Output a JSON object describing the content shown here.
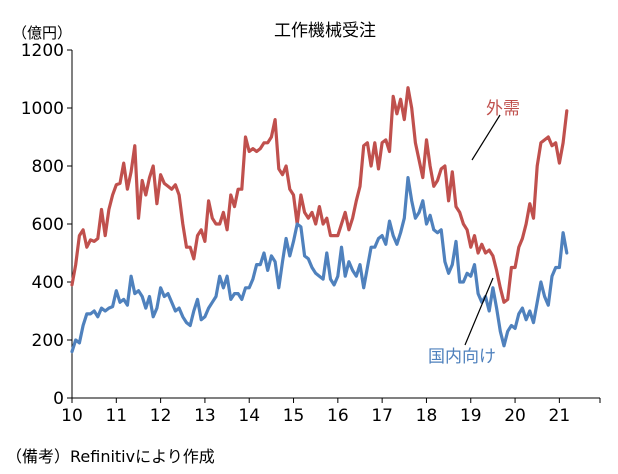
{
  "chart_data": {
    "type": "line",
    "title": "工作機械受注",
    "unit_label": "（億円）",
    "note": "（備考）Refinitivにより作成",
    "ylim": [
      0,
      1200
    ],
    "yticks": [
      0,
      200,
      400,
      600,
      800,
      1000,
      1200
    ],
    "xlim": [
      2010.0,
      2021.917
    ],
    "xticks": [
      "10",
      "11",
      "12",
      "13",
      "14",
      "15",
      "16",
      "17",
      "18",
      "19",
      "20",
      "21"
    ],
    "grid": false,
    "x_start": 2010.0,
    "x_step": 0.0833333,
    "series": [
      {
        "name": "外需",
        "color": "#c0504d",
        "values": [
          390,
          460,
          560,
          580,
          520,
          545,
          540,
          550,
          650,
          560,
          650,
          700,
          735,
          740,
          810,
          720,
          780,
          870,
          620,
          750,
          700,
          760,
          800,
          670,
          770,
          740,
          730,
          720,
          735,
          700,
          600,
          520,
          520,
          480,
          560,
          580,
          540,
          680,
          620,
          600,
          600,
          640,
          580,
          700,
          660,
          720,
          720,
          900,
          850,
          860,
          850,
          860,
          880,
          880,
          900,
          960,
          790,
          770,
          800,
          720,
          700,
          600,
          700,
          640,
          620,
          640,
          600,
          660,
          600,
          620,
          560,
          560,
          560,
          600,
          640,
          580,
          620,
          680,
          730,
          870,
          880,
          800,
          880,
          790,
          880,
          890,
          850,
          1040,
          980,
          1030,
          960,
          1070,
          1000,
          880,
          820,
          760,
          890,
          800,
          730,
          750,
          790,
          800,
          680,
          780,
          660,
          640,
          600,
          580,
          520,
          560,
          500,
          530,
          500,
          510,
          490,
          440,
          380,
          330,
          340,
          450,
          450,
          520,
          550,
          600,
          670,
          620,
          800,
          880,
          890,
          900,
          870,
          880,
          810,
          880,
          990
        ]
      },
      {
        "name": "国内向け",
        "color": "#4f81bd",
        "values": [
          160,
          200,
          190,
          250,
          290,
          290,
          300,
          280,
          310,
          300,
          310,
          315,
          370,
          330,
          340,
          320,
          420,
          360,
          370,
          350,
          310,
          350,
          280,
          310,
          380,
          350,
          360,
          330,
          300,
          310,
          280,
          260,
          250,
          300,
          340,
          270,
          280,
          310,
          330,
          350,
          420,
          380,
          420,
          340,
          360,
          360,
          340,
          380,
          380,
          410,
          460,
          460,
          500,
          440,
          490,
          470,
          380,
          470,
          550,
          490,
          540,
          600,
          590,
          490,
          480,
          450,
          430,
          420,
          410,
          500,
          410,
          390,
          420,
          520,
          420,
          470,
          440,
          420,
          460,
          380,
          450,
          520,
          520,
          550,
          560,
          530,
          610,
          560,
          530,
          570,
          620,
          760,
          680,
          620,
          640,
          680,
          600,
          630,
          580,
          570,
          580,
          470,
          430,
          460,
          540,
          400,
          400,
          430,
          420,
          460,
          360,
          330,
          350,
          300,
          380,
          310,
          230,
          180,
          230,
          250,
          240,
          290,
          310,
          270,
          300,
          260,
          330,
          400,
          350,
          320,
          420,
          450,
          450,
          570,
          500
        ]
      }
    ],
    "annotations": [
      {
        "text": "外需",
        "series": 0
      },
      {
        "text": "国内向け",
        "series": 1
      }
    ]
  }
}
